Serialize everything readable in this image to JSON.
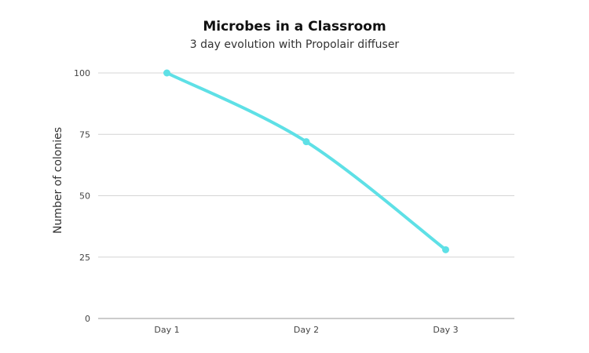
{
  "chart_data": {
    "type": "line",
    "title": "Microbes in a Classroom",
    "subtitle": "3 day evolution with Propolair diffuser",
    "xlabel": "",
    "ylabel": "Number of colonies",
    "categories": [
      "Day 1",
      "Day 2",
      "Day 3"
    ],
    "series": [
      {
        "values": [
          100,
          72,
          28
        ]
      }
    ],
    "ylim": [
      0,
      100
    ],
    "yticks": [
      0,
      25,
      50,
      75,
      100
    ],
    "grid": true,
    "legend": "none",
    "colors": {
      "line": "#5ee0e6",
      "grid": "#d4d4d4",
      "axis": "#999999"
    }
  }
}
